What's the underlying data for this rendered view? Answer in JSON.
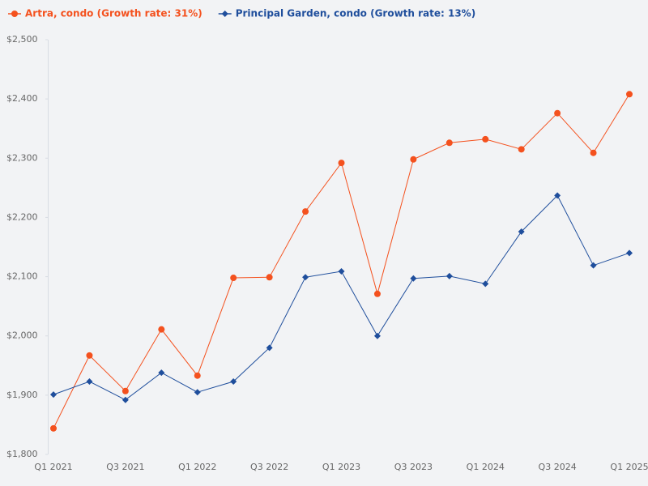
{
  "chart_data": {
    "type": "line",
    "categories": [
      "Q1 2021",
      null,
      "Q3 2021",
      null,
      "Q1 2022",
      null,
      "Q3 2022",
      null,
      "Q1 2023",
      null,
      "Q3 2023",
      null,
      "Q1 2024",
      null,
      "Q3 2024",
      null,
      "Q1 2025"
    ],
    "series": [
      {
        "name": "Artra, condo (Growth rate: 31%)",
        "color": "#f4511e",
        "marker": "circle",
        "values": [
          1844,
          1967,
          1907,
          2011,
          1933,
          2098,
          2099,
          2210,
          2292,
          2071,
          2298,
          2326,
          2332,
          2315,
          2376,
          2309,
          2408
        ]
      },
      {
        "name": "Principal Garden, condo (Growth rate: 13%)",
        "color": "#1f4e9c",
        "marker": "diamond",
        "values": [
          1901,
          1923,
          1892,
          1938,
          1905,
          1923,
          1980,
          2099,
          2109,
          2000,
          2097,
          2101,
          2088,
          2176,
          2237,
          2119,
          2140
        ]
      }
    ],
    "ylim": [
      1800,
      2500
    ],
    "yticks": [
      {
        "value": 1800,
        "label": "$1,800"
      },
      {
        "value": 1900,
        "label": "$1,900"
      },
      {
        "value": 2000,
        "label": "$2,000"
      },
      {
        "value": 2100,
        "label": "$2,100"
      },
      {
        "value": 2200,
        "label": "$2,200"
      },
      {
        "value": 2300,
        "label": "$2,300"
      },
      {
        "value": 2400,
        "label": "$2,400"
      },
      {
        "value": 2500,
        "label": "$2,500"
      }
    ],
    "grid": false,
    "legend": "top-left"
  }
}
